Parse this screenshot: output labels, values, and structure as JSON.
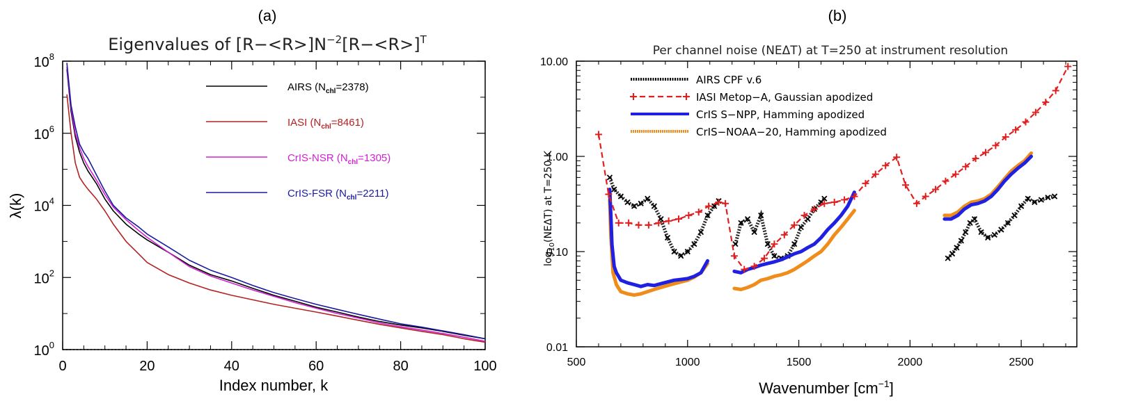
{
  "chart_data": [
    {
      "type": "line",
      "panel_label": "(a)",
      "title": {
        "text": "Eigenvalues of [R−<R>]N",
        "sup1": "−2",
        "mid": "[R−<R>]",
        "sup2": "T"
      },
      "xlabel": "Index number, k",
      "ylabel": "λ(k)",
      "xlim": [
        0,
        100
      ],
      "ylim": [
        1,
        100000000
      ],
      "y_scale": "log",
      "x_ticks": [
        "0",
        "20",
        "40",
        "60",
        "80",
        "100"
      ],
      "y_ticks": [
        {
          "base": "10",
          "exp": "0"
        },
        {
          "base": "10",
          "exp": "2"
        },
        {
          "base": "10",
          "exp": "4"
        },
        {
          "base": "10",
          "exp": "6"
        },
        {
          "base": "10",
          "exp": "8"
        }
      ],
      "reference_line": {
        "y": 1,
        "style": "dotted"
      },
      "legend_position": "top-right",
      "x": [
        1,
        2,
        3,
        4,
        5,
        6,
        8,
        10,
        12,
        15,
        18,
        20,
        25,
        30,
        35,
        40,
        45,
        50,
        55,
        60,
        65,
        70,
        75,
        80,
        85,
        90,
        95,
        100
      ],
      "series": [
        {
          "name": "AIRS",
          "label_sub": "chl",
          "label_count": "=2378",
          "color": "#000000",
          "values": [
            60000000,
            4000000,
            800000,
            300000,
            150000,
            90000,
            40000,
            15000,
            7000,
            3000,
            1600,
            1100,
            500,
            220,
            120,
            80,
            50,
            32,
            22,
            15,
            11,
            8,
            6,
            4.8,
            4,
            3.2,
            2.5,
            2
          ]
        },
        {
          "name": "IASI",
          "label_sub": "chl",
          "label_count": "=8461",
          "color": "#b22222",
          "values": [
            12000000,
            1000000,
            150000,
            60000,
            40000,
            28000,
            15000,
            7000,
            3000,
            1000,
            450,
            260,
            120,
            70,
            45,
            32,
            24,
            18,
            14,
            11,
            8.5,
            6.5,
            5,
            4,
            3.2,
            2.6,
            2,
            1.6
          ]
        },
        {
          "name": "CrIS-NSR",
          "label_sub": "chl",
          "label_count": "=1305",
          "color": "#d020d0",
          "values": [
            70000000,
            5000000,
            1000000,
            400000,
            200000,
            120000,
            50000,
            20000,
            9000,
            4000,
            2000,
            1300,
            500,
            200,
            110,
            70,
            45,
            30,
            20,
            14,
            10,
            7.5,
            5.5,
            4.3,
            3.5,
            2.8,
            2.2,
            1.7
          ]
        },
        {
          "name": "CrIS-FSR",
          "label_sub": "chl",
          "label_count": "=2211",
          "color": "#1a1aa0",
          "values": [
            90000000,
            6000000,
            1500000,
            500000,
            300000,
            200000,
            70000,
            25000,
            10000,
            4500,
            2500,
            1600,
            700,
            300,
            160,
            100,
            60,
            38,
            26,
            18,
            13,
            9.5,
            7,
            5.2,
            4.2,
            3.3,
            2.6,
            2
          ]
        }
      ]
    },
    {
      "type": "scatter",
      "panel_label": "(b)",
      "title": "Per channel noise (NEΔT) at T=250 at instrument resolution",
      "xlabel": {
        "text": "Wavenumber [cm",
        "sup": "−1",
        "tail": "]"
      },
      "ylabel": {
        "text": "log",
        "sub": "10",
        "tail": "(NEΔT) at T=250 K"
      },
      "xlim": [
        500,
        2750
      ],
      "ylim": [
        0.01,
        10
      ],
      "y_scale": "log",
      "x_ticks": [
        "500",
        "1000",
        "1500",
        "2000",
        "2500"
      ],
      "y_ticks": [
        "0.01",
        "0.10",
        "1.00",
        "10.00"
      ],
      "legend_position": "top-left",
      "series": [
        {
          "name": "AIRS CPF v.6",
          "color": "#000000",
          "marker": "x",
          "segments": [
            {
              "x": [
                650,
                670,
                700,
                730,
                760,
                790,
                820,
                850,
                880,
                910,
                940,
                970,
                1000,
                1030,
                1060,
                1090,
                1120,
                1140
              ],
              "y": [
                0.6,
                0.45,
                0.38,
                0.33,
                0.3,
                0.32,
                0.36,
                0.3,
                0.22,
                0.14,
                0.1,
                0.09,
                0.1,
                0.12,
                0.16,
                0.24,
                0.3,
                0.34
              ]
            },
            {
              "x": [
                1215,
                1240,
                1270,
                1300,
                1330,
                1360,
                1390,
                1420,
                1450,
                1480,
                1510,
                1540,
                1570,
                1600,
                1615
              ],
              "y": [
                0.12,
                0.2,
                0.22,
                0.16,
                0.24,
                0.12,
                0.09,
                0.085,
                0.09,
                0.12,
                0.18,
                0.22,
                0.28,
                0.33,
                0.36
              ]
            },
            {
              "x": [
                2170,
                2190,
                2210,
                2230,
                2250,
                2270,
                2290,
                2320,
                2350,
                2380,
                2410,
                2440,
                2470,
                2500,
                2530,
                2560,
                2590,
                2620,
                2650
              ],
              "y": [
                0.085,
                0.095,
                0.11,
                0.13,
                0.16,
                0.2,
                0.22,
                0.16,
                0.14,
                0.15,
                0.17,
                0.2,
                0.24,
                0.3,
                0.36,
                0.33,
                0.35,
                0.37,
                0.38
              ]
            }
          ]
        },
        {
          "name": "IASI Metop−A, Gaussian apodized",
          "color": "#e02020",
          "marker": "+",
          "line": "dashed",
          "segments": [
            {
              "x": [
                600,
                645,
                690,
                735,
                780,
                825,
                870,
                915,
                960,
                1005,
                1050,
                1095,
                1140,
                1170,
                1210,
                1255,
                1300,
                1345,
                1390,
                1435,
                1480,
                1525,
                1570,
                1615,
                1660,
                1705,
                1750,
                1800,
                1845,
                1890,
                1940,
                1980,
                2030,
                2070,
                2115,
                2160,
                2205,
                2250,
                2295,
                2340,
                2385,
                2430,
                2475,
                2520,
                2565,
                2610,
                2655,
                2710
              ],
              "y": [
                1.7,
                0.4,
                0.2,
                0.2,
                0.19,
                0.19,
                0.2,
                0.21,
                0.22,
                0.24,
                0.26,
                0.3,
                0.33,
                0.32,
                0.09,
                0.065,
                0.07,
                0.085,
                0.12,
                0.15,
                0.19,
                0.24,
                0.28,
                0.32,
                0.33,
                0.35,
                0.38,
                0.52,
                0.65,
                0.8,
                0.98,
                0.5,
                0.32,
                0.38,
                0.45,
                0.55,
                0.65,
                0.78,
                0.95,
                1.1,
                1.3,
                1.6,
                1.9,
                2.3,
                2.9,
                3.7,
                4.9,
                8.8
              ]
            }
          ]
        },
        {
          "name": "CrIS S−NPP, Hamming apodized",
          "color": "#2020e0",
          "marker": "o",
          "segments": [
            {
              "x": [
                650,
                655,
                660,
                670,
                680,
                700,
                730,
                760,
                790,
                820,
                850,
                880,
                910,
                940,
                970,
                1000,
                1030,
                1060,
                1090
              ],
              "y": [
                0.45,
                0.25,
                0.12,
                0.07,
                0.06,
                0.05,
                0.047,
                0.045,
                0.043,
                0.045,
                0.044,
                0.046,
                0.048,
                0.05,
                0.051,
                0.052,
                0.055,
                0.06,
                0.08
              ]
            },
            {
              "x": [
                1210,
                1240,
                1270,
                1300,
                1330,
                1360,
                1390,
                1420,
                1450,
                1480,
                1510,
                1540,
                1570,
                1600,
                1630,
                1660,
                1690,
                1720,
                1750
              ],
              "y": [
                0.062,
                0.06,
                0.065,
                0.068,
                0.072,
                0.075,
                0.078,
                0.082,
                0.088,
                0.095,
                0.1,
                0.11,
                0.12,
                0.14,
                0.17,
                0.2,
                0.24,
                0.3,
                0.42
              ]
            },
            {
              "x": [
                2155,
                2185,
                2215,
                2245,
                2275,
                2305,
                2335,
                2365,
                2395,
                2425,
                2455,
                2485,
                2515,
                2545
              ],
              "y": [
                0.22,
                0.22,
                0.24,
                0.28,
                0.31,
                0.32,
                0.34,
                0.38,
                0.45,
                0.55,
                0.65,
                0.75,
                0.85,
                1.0
              ]
            }
          ]
        },
        {
          "name": "CrIS−NOAA−20, Hamming apodized",
          "color": "#f08c1a",
          "marker": "dotted",
          "segments": [
            {
              "x": [
                650,
                655,
                665,
                680,
                700,
                730,
                760,
                790,
                820,
                850,
                880,
                910,
                940,
                970,
                1000,
                1030,
                1060,
                1090
              ],
              "y": [
                0.35,
                0.15,
                0.06,
                0.045,
                0.038,
                0.036,
                0.035,
                0.036,
                0.038,
                0.04,
                0.042,
                0.044,
                0.046,
                0.048,
                0.05,
                0.054,
                0.06,
                0.075
              ]
            },
            {
              "x": [
                1210,
                1240,
                1270,
                1300,
                1330,
                1360,
                1390,
                1420,
                1450,
                1480,
                1510,
                1540,
                1570,
                1600,
                1630,
                1660,
                1690,
                1720,
                1750
              ],
              "y": [
                0.041,
                0.04,
                0.042,
                0.045,
                0.05,
                0.052,
                0.055,
                0.057,
                0.06,
                0.065,
                0.072,
                0.08,
                0.09,
                0.1,
                0.12,
                0.15,
                0.18,
                0.22,
                0.27
              ]
            },
            {
              "x": [
                2155,
                2185,
                2215,
                2245,
                2275,
                2305,
                2335,
                2365,
                2395,
                2425,
                2455,
                2485,
                2515,
                2545
              ],
              "y": [
                0.24,
                0.24,
                0.26,
                0.3,
                0.33,
                0.34,
                0.36,
                0.4,
                0.48,
                0.58,
                0.7,
                0.8,
                0.9,
                1.08
              ]
            }
          ]
        }
      ]
    }
  ]
}
